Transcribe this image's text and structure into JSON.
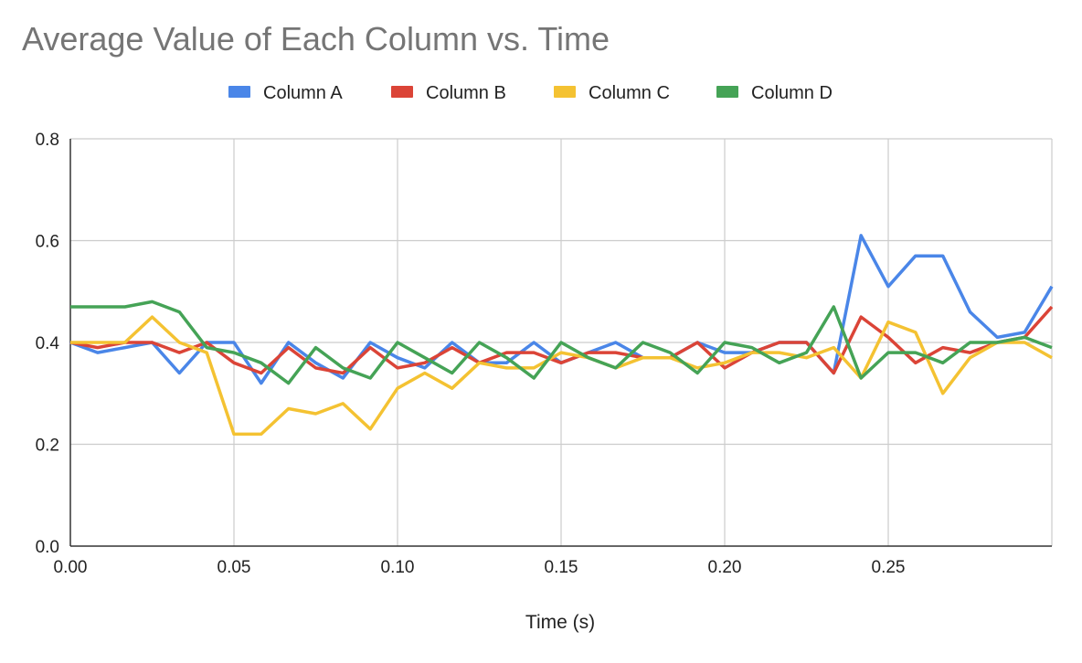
{
  "chart_data": {
    "type": "line",
    "title": "Average Value of Each Column vs. Time",
    "xlabel": "Time (s)",
    "ylabel": "",
    "xlim": [
      0,
      0.3
    ],
    "ylim": [
      0,
      0.8
    ],
    "x_ticks": [
      "0.00",
      "0.05",
      "0.10",
      "0.15",
      "0.20",
      "0.25"
    ],
    "y_ticks": [
      "0.0",
      "0.2",
      "0.4",
      "0.6",
      "0.8"
    ],
    "grid": true,
    "legend_position": "top",
    "x": [
      0,
      0.00833,
      0.01667,
      0.025,
      0.03333,
      0.04167,
      0.05,
      0.05833,
      0.06667,
      0.075,
      0.08333,
      0.09167,
      0.1,
      0.10833,
      0.11667,
      0.125,
      0.13333,
      0.14167,
      0.15,
      0.15833,
      0.16667,
      0.175,
      0.18333,
      0.19167,
      0.2,
      0.20833,
      0.21667,
      0.225,
      0.23333,
      0.24167,
      0.25,
      0.25833,
      0.26667,
      0.275,
      0.28333,
      0.29167,
      0.3
    ],
    "series": [
      {
        "name": "Column A",
        "color": "#4a86e8",
        "values": [
          0.4,
          0.38,
          0.39,
          0.4,
          0.34,
          0.4,
          0.4,
          0.32,
          0.4,
          0.36,
          0.33,
          0.4,
          0.37,
          0.35,
          0.4,
          0.36,
          0.36,
          0.4,
          0.36,
          0.38,
          0.4,
          0.37,
          0.37,
          0.4,
          0.38,
          0.38,
          0.4,
          0.4,
          0.34,
          0.61,
          0.51,
          0.57,
          0.57,
          0.46,
          0.41,
          0.42,
          0.51
        ]
      },
      {
        "name": "Column B",
        "color": "#db4437",
        "values": [
          0.4,
          0.39,
          0.4,
          0.4,
          0.38,
          0.4,
          0.36,
          0.34,
          0.39,
          0.35,
          0.34,
          0.39,
          0.35,
          0.36,
          0.39,
          0.36,
          0.38,
          0.38,
          0.36,
          0.38,
          0.38,
          0.37,
          0.37,
          0.4,
          0.35,
          0.38,
          0.4,
          0.4,
          0.34,
          0.45,
          0.41,
          0.36,
          0.39,
          0.38,
          0.4,
          0.41,
          0.47
        ]
      },
      {
        "name": "Column C",
        "color": "#f4c232",
        "values": [
          0.4,
          0.4,
          0.4,
          0.45,
          0.4,
          0.38,
          0.22,
          0.22,
          0.27,
          0.26,
          0.28,
          0.23,
          0.31,
          0.34,
          0.31,
          0.36,
          0.35,
          0.35,
          0.38,
          0.37,
          0.35,
          0.37,
          0.37,
          0.35,
          0.36,
          0.38,
          0.38,
          0.37,
          0.39,
          0.33,
          0.44,
          0.42,
          0.3,
          0.37,
          0.4,
          0.4,
          0.37
        ]
      },
      {
        "name": "Column D",
        "color": "#45a356",
        "values": [
          0.47,
          0.47,
          0.47,
          0.48,
          0.46,
          0.39,
          0.38,
          0.36,
          0.32,
          0.39,
          0.35,
          0.33,
          0.4,
          0.37,
          0.34,
          0.4,
          0.37,
          0.33,
          0.4,
          0.37,
          0.35,
          0.4,
          0.38,
          0.34,
          0.4,
          0.39,
          0.36,
          0.38,
          0.47,
          0.33,
          0.38,
          0.38,
          0.36,
          0.4,
          0.4,
          0.41,
          0.39
        ]
      }
    ]
  }
}
